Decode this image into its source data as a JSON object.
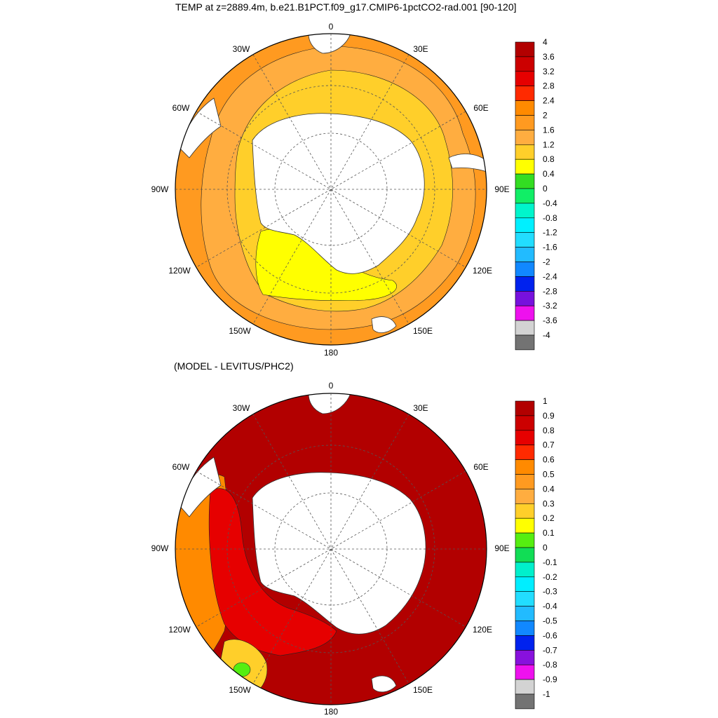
{
  "titles": {
    "top": "TEMP at z=2889.4m, b.e21.B1PCT.f09_g17.CMIP6-1pctCO2-rad.001 [90-120]",
    "bottom": "(MODEL - LEVITUS/PHC2)"
  },
  "longitude_labels": [
    "0",
    "30E",
    "60E",
    "90E",
    "120E",
    "150E",
    "180",
    "150W",
    "120W",
    "90W",
    "60W",
    "30W"
  ],
  "colorbar_top": {
    "labels": [
      "4",
      "3.6",
      "3.2",
      "2.8",
      "2.4",
      "2",
      "1.6",
      "1.2",
      "0.8",
      "0.4",
      "0",
      "-0.4",
      "-0.8",
      "-1.2",
      "-1.6",
      "-2",
      "-2.4",
      "-2.8",
      "-3.2",
      "-3.6",
      "-4"
    ],
    "colors": [
      "#b20000",
      "#cc0000",
      "#e60000",
      "#ff2a00",
      "#ff8a00",
      "#ff9a20",
      "#ffad40",
      "#ffcf2a",
      "#ffff00",
      "#33dd22",
      "#11ee66",
      "#00f5cc",
      "#00f0ff",
      "#22ddff",
      "#22bbff",
      "#1188ff",
      "#0022ee",
      "#7711dd",
      "#ee11ee",
      "#d3d3d3",
      "#737373"
    ]
  },
  "colorbar_bottom": {
    "labels": [
      "1",
      "0.9",
      "0.8",
      "0.7",
      "0.6",
      "0.5",
      "0.4",
      "0.3",
      "0.2",
      "0.1",
      "0",
      "-0.1",
      "-0.2",
      "-0.3",
      "-0.4",
      "-0.5",
      "-0.6",
      "-0.7",
      "-0.8",
      "-0.9",
      "-1"
    ],
    "colors": [
      "#b20000",
      "#cc0000",
      "#e60000",
      "#ff2a00",
      "#ff8a00",
      "#ff9a20",
      "#ffad40",
      "#ffcf2a",
      "#ffff00",
      "#55ee11",
      "#11dd55",
      "#00f0cc",
      "#00eeff",
      "#22ddff",
      "#22bbff",
      "#1188ff",
      "#0022ee",
      "#8811dd",
      "#ee11ee",
      "#d3d3d3",
      "#737373"
    ]
  },
  "map_colors": {
    "top": {
      "ocean_outer": "#ff9a20",
      "ocean_mid": "#ffad40",
      "ocean_inner": "#ffcf2a",
      "coldest": "#ffff00",
      "land": "#ffffff"
    },
    "bottom": {
      "ocean_main": "#b20000",
      "west_ocean": "#e60000",
      "west_edge": "#ff8a00",
      "warm_patch": "#ffcf2a",
      "green_patch": "#55ee11",
      "land": "#ffffff"
    }
  }
}
